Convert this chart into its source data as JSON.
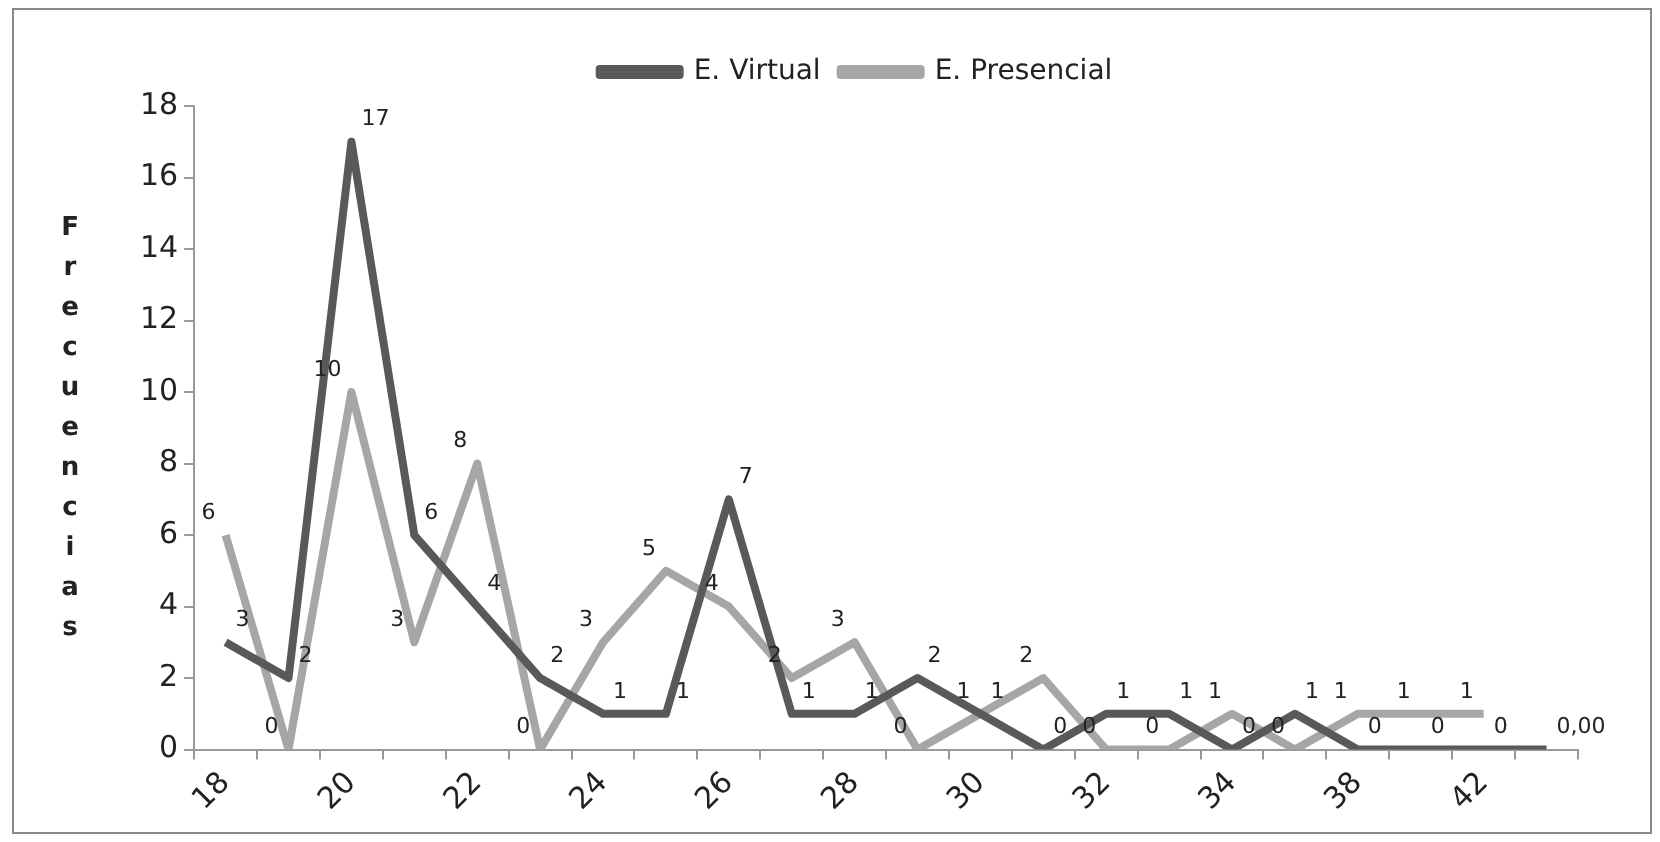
{
  "chart_data": {
    "type": "line",
    "ylabel": "Frecuencias",
    "categories": [
      "18",
      null,
      "20",
      null,
      "22",
      null,
      "24",
      null,
      "26",
      null,
      "28",
      null,
      "30",
      null,
      "32",
      null,
      "34",
      null,
      "38",
      null,
      "42",
      null
    ],
    "series": [
      {
        "name": "E. Virtual",
        "color": "#595959",
        "values": [
          3,
          2,
          17,
          6,
          4,
          2,
          1,
          1,
          7,
          1,
          1,
          2,
          1,
          0,
          1,
          1,
          0,
          1,
          0,
          0,
          0,
          0
        ],
        "value_labels": [
          "3",
          "2",
          "17",
          "6",
          "4",
          "2",
          "1",
          "1",
          "7",
          "1",
          "1",
          "2",
          "1",
          "0",
          "1",
          "1",
          "0",
          "1",
          "0",
          "0",
          "0",
          "0,00"
        ]
      },
      {
        "name": "E. Presencial",
        "color": "#a6a6a6",
        "values": [
          6,
          0,
          10,
          3,
          8,
          0,
          3,
          5,
          4,
          2,
          3,
          0,
          1,
          2,
          0,
          0,
          1,
          0,
          1,
          1,
          1,
          null
        ],
        "value_labels": [
          "6",
          "0",
          "10",
          "3",
          "8",
          "0",
          "3",
          "5",
          "4",
          "2",
          "3",
          "0",
          "1",
          "2",
          "0",
          "0",
          "1",
          "0",
          "1",
          "1",
          "1",
          null
        ]
      }
    ],
    "ylim": [
      0,
      18
    ],
    "yticks": [
      0,
      2,
      4,
      6,
      8,
      10,
      12,
      14,
      16,
      18
    ],
    "grid": false,
    "legend": "top",
    "marker": "none",
    "line_style": "solid"
  }
}
